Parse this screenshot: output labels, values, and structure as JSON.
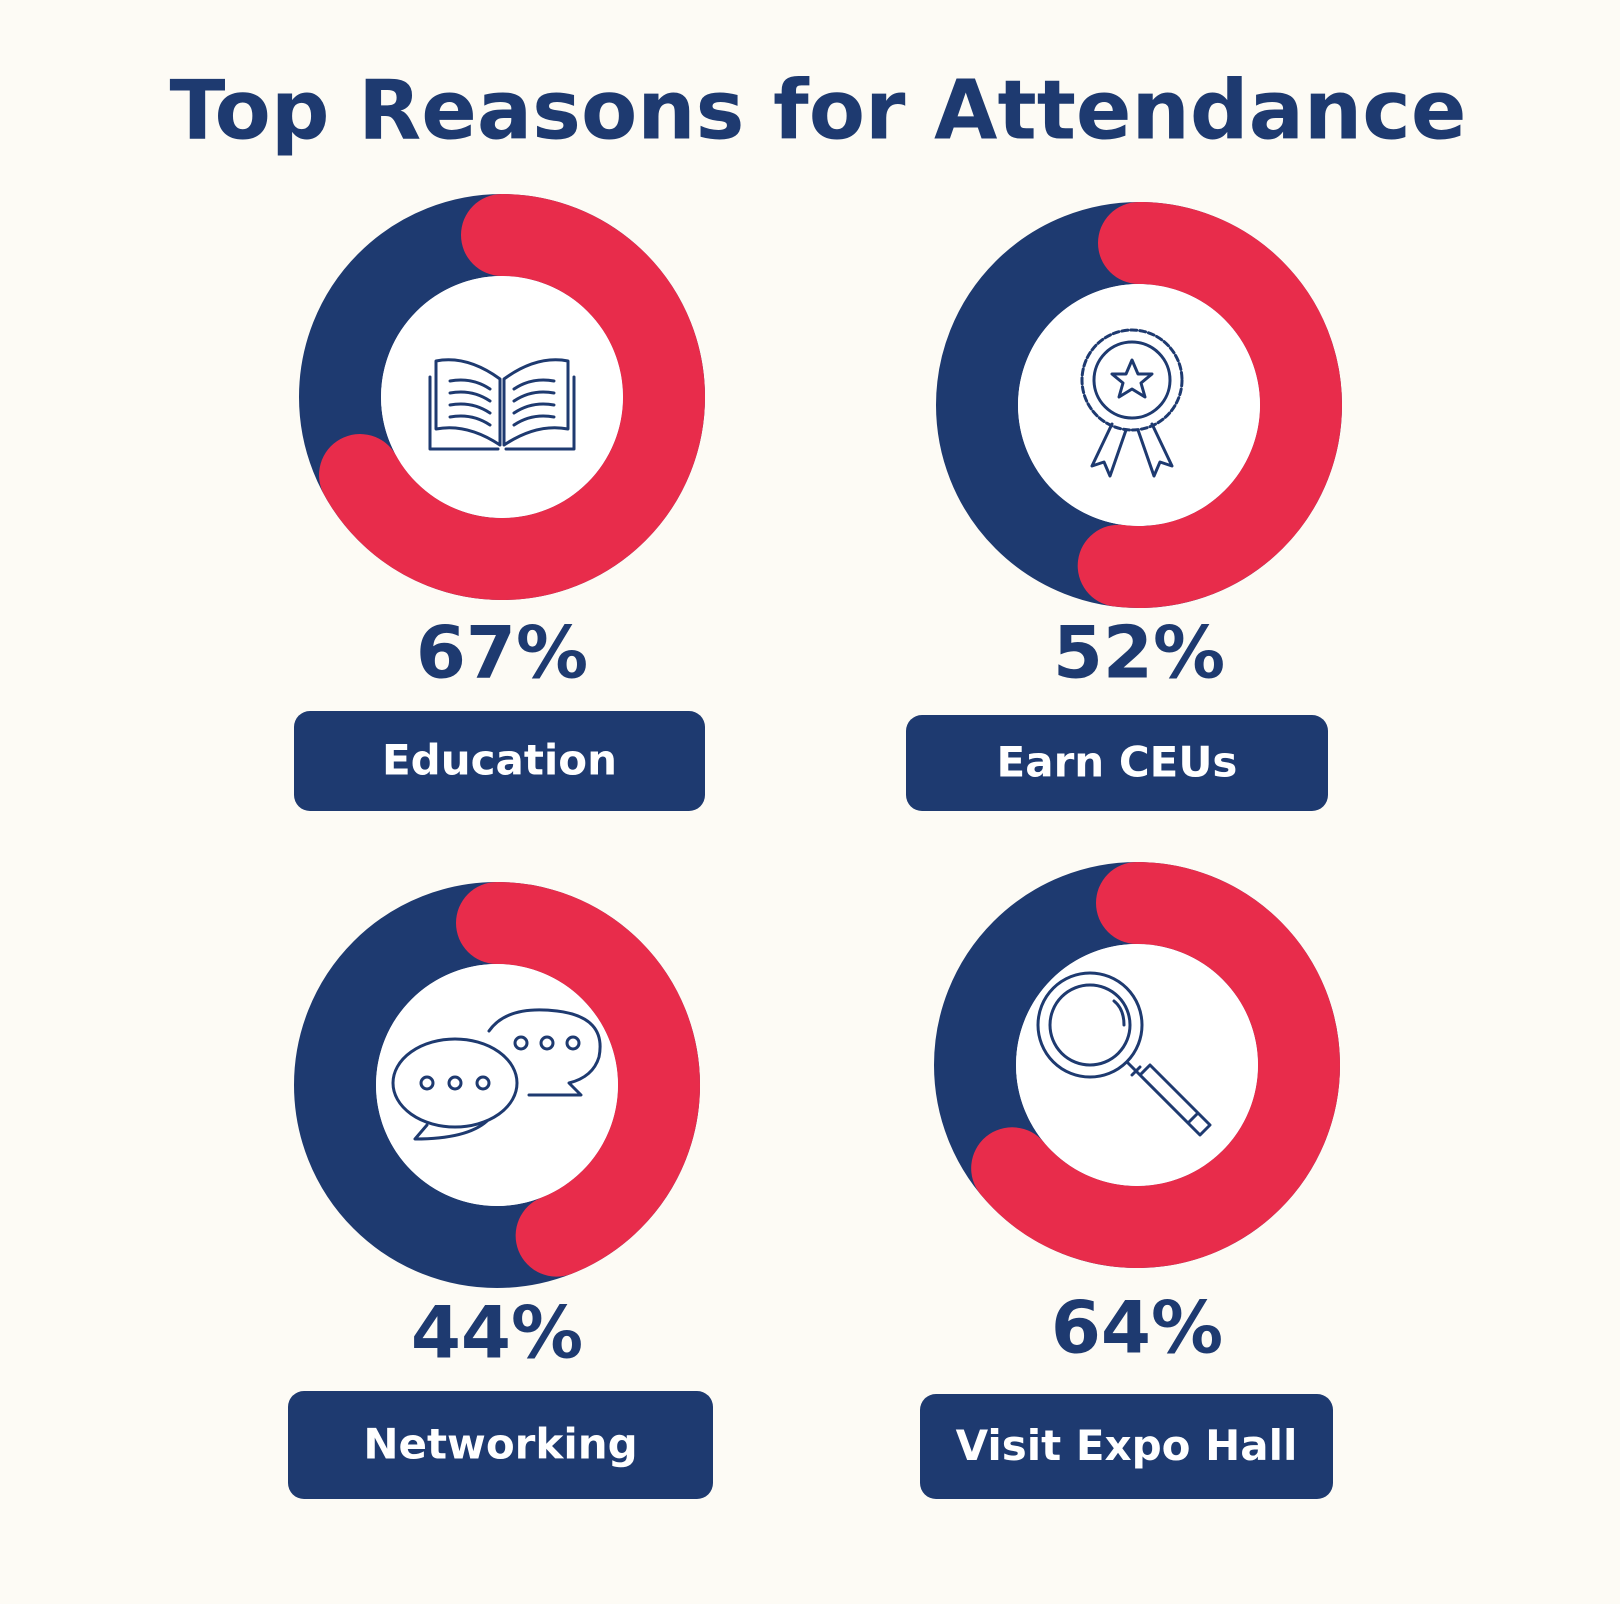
{
  "chart_data": {
    "type": "donut",
    "title": "Top Reasons for Attendance",
    "categories": [
      "Education",
      "Earn CEUs",
      "Networking",
      "Visit Expo Hall"
    ],
    "values": [
      67,
      52,
      44,
      64
    ],
    "value_labels": [
      "67%",
      "52%",
      "44%",
      "64%"
    ],
    "color": "#e82c4b",
    "track_color": "#1e3a70"
  }
}
